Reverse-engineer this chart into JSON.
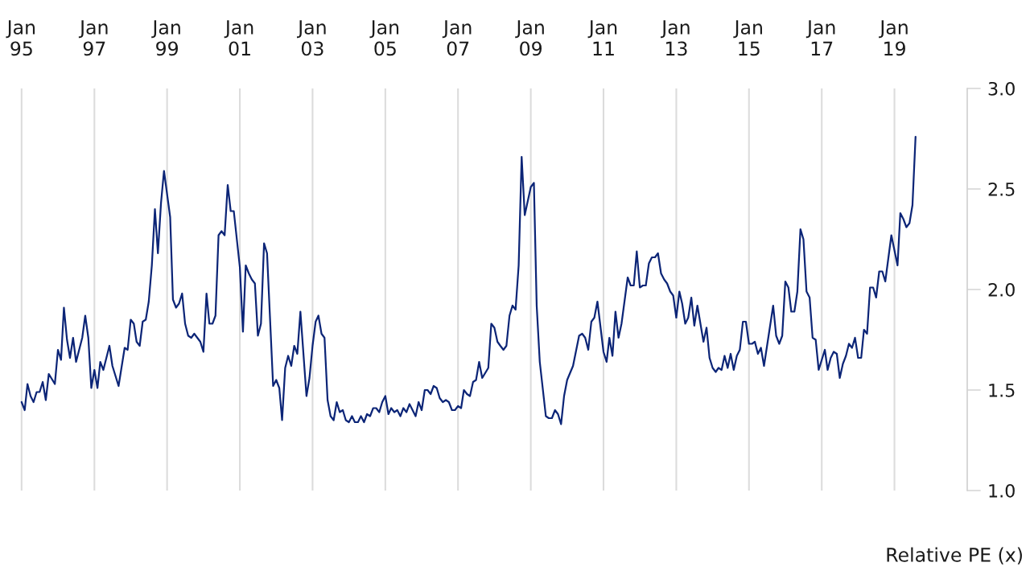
{
  "chart_data": {
    "type": "line",
    "annotations": [
      "Relative PE (x)"
    ],
    "x": [
      "1995-01",
      "1995-02",
      "1995-03",
      "1995-04",
      "1995-05",
      "1995-06",
      "1995-07",
      "1995-08",
      "1995-09",
      "1995-10",
      "1995-12",
      "1996-01",
      "1996-02",
      "1996-03",
      "1996-04",
      "1996-05",
      "1996-06",
      "1996-07",
      "1996-09",
      "1996-10",
      "1996-11",
      "1996-12",
      "1997-01",
      "1997-02",
      "1997-03",
      "1997-04",
      "1997-06",
      "1997-07",
      "1997-09",
      "1997-11",
      "1997-12",
      "1998-01",
      "1998-02",
      "1998-03",
      "1998-04",
      "1998-05",
      "1998-06",
      "1998-07",
      "1998-08",
      "1998-09",
      "1998-10",
      "1998-11",
      "1998-12",
      "1999-02",
      "1999-03",
      "1999-04",
      "1999-05",
      "1999-06",
      "1999-07",
      "1999-08",
      "1999-09",
      "1999-10",
      "1999-12",
      "2000-01",
      "2000-02",
      "2000-03",
      "2000-04",
      "2000-05",
      "2000-06",
      "2000-07",
      "2000-08",
      "2000-09",
      "2000-10",
      "2000-11",
      "2001-01",
      "2001-02",
      "2001-03",
      "2001-04",
      "2001-05",
      "2001-06",
      "2001-07",
      "2001-08",
      "2001-09",
      "2001-10",
      "2001-12",
      "2002-01",
      "2002-02",
      "2002-03",
      "2002-04",
      "2002-05",
      "2002-06",
      "2002-07",
      "2002-08",
      "2002-09",
      "2002-11",
      "2002-12",
      "2003-01",
      "2003-02",
      "2003-03",
      "2003-04",
      "2003-05",
      "2003-06",
      "2003-07",
      "2003-08",
      "2003-09",
      "2003-10",
      "2003-11",
      "2003-12",
      "2004-01",
      "2004-02",
      "2004-03",
      "2004-04",
      "2004-05",
      "2004-06",
      "2004-07",
      "2004-08",
      "2004-09",
      "2004-10",
      "2004-11",
      "2004-12",
      "2005-01",
      "2005-02",
      "2005-03",
      "2005-04",
      "2005-05",
      "2005-06",
      "2005-07",
      "2005-08",
      "2005-09",
      "2005-11",
      "2005-12",
      "2006-01",
      "2006-02",
      "2006-03",
      "2006-04",
      "2006-05",
      "2006-06",
      "2006-07",
      "2006-08",
      "2006-09",
      "2006-10",
      "2006-11",
      "2006-12",
      "2007-01",
      "2007-02",
      "2007-03",
      "2007-04",
      "2007-05",
      "2007-06",
      "2007-07",
      "2007-08",
      "2007-09",
      "2007-11",
      "2007-12",
      "2008-01",
      "2008-02",
      "2008-03",
      "2008-04",
      "2008-05",
      "2008-06",
      "2008-07",
      "2008-08",
      "2008-09",
      "2008-10",
      "2008-11",
      "2009-01",
      "2009-02",
      "2009-03",
      "2009-04",
      "2009-06",
      "2009-07",
      "2009-08",
      "2009-09",
      "2009-10",
      "2009-11",
      "2009-12",
      "2010-01",
      "2010-03",
      "2010-05",
      "2010-06",
      "2010-07",
      "2010-08",
      "2010-09",
      "2010-10",
      "2010-11",
      "2011-01",
      "2011-02",
      "2011-03",
      "2011-04",
      "2011-05",
      "2011-06",
      "2011-07",
      "2011-09",
      "2011-10",
      "2011-11",
      "2011-12",
      "2012-01",
      "2012-02",
      "2012-03",
      "2012-04",
      "2012-05",
      "2012-06",
      "2012-07",
      "2012-08",
      "2012-09",
      "2012-10",
      "2012-11",
      "2012-12",
      "2013-01",
      "2013-02",
      "2013-03",
      "2013-04",
      "2013-05",
      "2013-06",
      "2013-07",
      "2013-08",
      "2013-10",
      "2013-11",
      "2013-12",
      "2014-01",
      "2014-02",
      "2014-03",
      "2014-04",
      "2014-05",
      "2014-06",
      "2014-07",
      "2014-08",
      "2014-09",
      "2014-10",
      "2014-11",
      "2014-12",
      "2015-01",
      "2015-02",
      "2015-03",
      "2015-04",
      "2015-05",
      "2015-06",
      "2015-09",
      "2015-10",
      "2015-11",
      "2015-12",
      "2016-01",
      "2016-02",
      "2016-03",
      "2016-04",
      "2016-05",
      "2016-06",
      "2016-07",
      "2016-08",
      "2016-09",
      "2016-10",
      "2016-11",
      "2016-12",
      "2017-02",
      "2017-03",
      "2017-04",
      "2017-05",
      "2017-06",
      "2017-07",
      "2017-08",
      "2017-09",
      "2017-10",
      "2017-11",
      "2017-12",
      "2018-01",
      "2018-02",
      "2018-03",
      "2018-04",
      "2018-05",
      "2018-06",
      "2018-07",
      "2018-08",
      "2018-09",
      "2018-10",
      "2018-12",
      "2019-02",
      "2019-03",
      "2019-04",
      "2019-05",
      "2019-06",
      "2019-07",
      "2019-08"
    ],
    "series": [
      {
        "color": "#0c2577",
        "values": [
          1.44,
          1.4,
          1.53,
          1.47,
          1.44,
          1.49,
          1.49,
          1.54,
          1.45,
          1.58,
          1.53,
          1.7,
          1.65,
          1.91,
          1.75,
          1.66,
          1.76,
          1.64,
          1.76,
          1.87,
          1.76,
          1.51,
          1.6,
          1.51,
          1.64,
          1.6,
          1.72,
          1.62,
          1.52,
          1.71,
          1.7,
          1.85,
          1.83,
          1.74,
          1.72,
          1.84,
          1.85,
          1.94,
          2.12,
          2.4,
          2.18,
          2.43,
          2.59,
          2.36,
          1.95,
          1.91,
          1.93,
          1.98,
          1.83,
          1.77,
          1.76,
          1.78,
          1.74,
          1.69,
          1.98,
          1.83,
          1.83,
          1.87,
          2.27,
          2.29,
          2.27,
          2.52,
          2.39,
          2.39,
          2.11,
          1.79,
          2.12,
          2.08,
          2.05,
          2.03,
          1.77,
          1.83,
          2.23,
          2.18,
          1.52,
          1.55,
          1.51,
          1.35,
          1.61,
          1.67,
          1.62,
          1.72,
          1.68,
          1.89,
          1.47,
          1.56,
          1.72,
          1.84,
          1.87,
          1.78,
          1.76,
          1.45,
          1.37,
          1.35,
          1.44,
          1.39,
          1.4,
          1.35,
          1.34,
          1.37,
          1.34,
          1.34,
          1.37,
          1.34,
          1.38,
          1.37,
          1.41,
          1.41,
          1.39,
          1.44,
          1.47,
          1.38,
          1.41,
          1.39,
          1.4,
          1.37,
          1.41,
          1.39,
          1.43,
          1.37,
          1.44,
          1.4,
          1.5,
          1.5,
          1.48,
          1.52,
          1.51,
          1.46,
          1.44,
          1.45,
          1.44,
          1.4,
          1.4,
          1.42,
          1.41,
          1.5,
          1.48,
          1.47,
          1.54,
          1.55,
          1.64,
          1.56,
          1.61,
          1.83,
          1.81,
          1.74,
          1.72,
          1.7,
          1.72,
          1.87,
          1.92,
          1.9,
          2.12,
          2.66,
          2.37,
          2.51,
          2.53,
          1.92,
          1.64,
          1.37,
          1.36,
          1.36,
          1.4,
          1.38,
          1.33,
          1.47,
          1.55,
          1.62,
          1.77,
          1.78,
          1.76,
          1.7,
          1.84,
          1.86,
          1.94,
          1.69,
          1.64,
          1.76,
          1.67,
          1.89,
          1.76,
          1.83,
          2.06,
          2.02,
          2.02,
          2.19,
          2.01,
          2.02,
          2.02,
          2.13,
          2.16,
          2.16,
          2.18,
          2.08,
          2.05,
          2.03,
          1.99,
          1.97,
          1.86,
          1.99,
          1.93,
          1.83,
          1.86,
          1.96,
          1.82,
          1.92,
          1.74,
          1.81,
          1.66,
          1.61,
          1.59,
          1.61,
          1.6,
          1.67,
          1.61,
          1.68,
          1.6,
          1.67,
          1.7,
          1.84,
          1.84,
          1.73,
          1.73,
          1.74,
          1.68,
          1.71,
          1.62,
          1.92,
          1.77,
          1.73,
          1.77,
          2.04,
          2.01,
          1.89,
          1.89,
          1.99,
          2.3,
          2.25,
          1.99,
          1.96,
          1.76,
          1.75,
          1.6,
          1.7,
          1.6,
          1.66,
          1.69,
          1.68,
          1.56,
          1.63,
          1.67,
          1.73,
          1.71,
          1.76,
          1.66,
          1.66,
          1.8,
          1.78,
          2.01,
          2.01,
          1.96,
          2.09,
          2.09,
          2.04,
          2.27,
          2.12,
          2.38,
          2.35,
          2.31,
          2.33,
          2.42,
          2.76
        ]
      }
    ],
    "xlim": [
      "1995-01",
      "2021-01"
    ],
    "xticks": [
      {
        "value": "1995-01",
        "label": "Jan\n95"
      },
      {
        "value": "1997-01",
        "label": "Jan\n97"
      },
      {
        "value": "1999-01",
        "label": "Jan\n99"
      },
      {
        "value": "2001-01",
        "label": "Jan\n01"
      },
      {
        "value": "2003-01",
        "label": "Jan\n03"
      },
      {
        "value": "2005-01",
        "label": "Jan\n05"
      },
      {
        "value": "2007-01",
        "label": "Jan\n07"
      },
      {
        "value": "2009-01",
        "label": "Jan\n09"
      },
      {
        "value": "2011-01",
        "label": "Jan\n11"
      },
      {
        "value": "2013-01",
        "label": "Jan\n13"
      },
      {
        "value": "2015-01",
        "label": "Jan\n15"
      },
      {
        "value": "2017-01",
        "label": "Jan\n17"
      },
      {
        "value": "2019-01",
        "label": "Jan\n19"
      }
    ],
    "ylim": [
      1.0,
      3.0
    ],
    "yticks": [
      {
        "value": 1.0,
        "label": "1.0"
      },
      {
        "value": 1.5,
        "label": "1.5"
      },
      {
        "value": 2.0,
        "label": "2.0"
      },
      {
        "value": 2.5,
        "label": "2.5"
      },
      {
        "value": 3.0,
        "label": "3.0"
      }
    ],
    "grid": "x",
    "legend": false,
    "line_style": "solid",
    "marker": "none"
  }
}
